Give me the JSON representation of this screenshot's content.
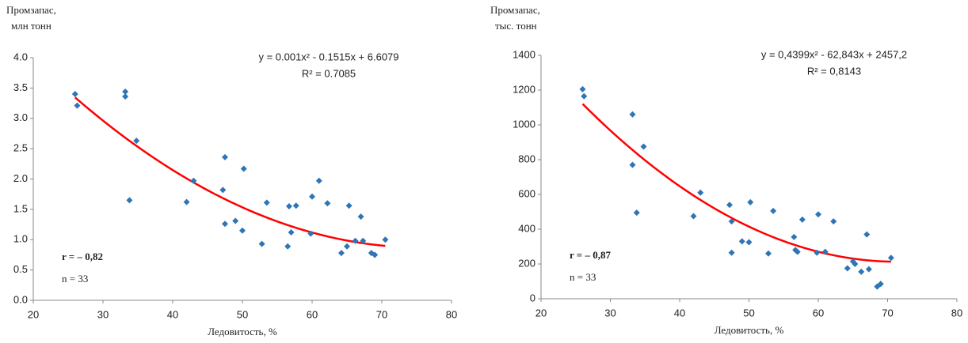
{
  "chart_data": [
    {
      "type": "scatter",
      "y_label_lines": [
        "Промзапас,",
        "млн  тонн"
      ],
      "x_label": "Ледовитость, %",
      "equation": "y = 0.001x² - 0.1515x + 6.6079",
      "r_squared": "R² = 0.7085",
      "r_label": "r = – 0,82",
      "n_label": "n = 33",
      "xlim": [
        20,
        80
      ],
      "xticks": [
        20,
        30,
        40,
        50,
        60,
        70,
        80
      ],
      "ylim": [
        0,
        4
      ],
      "yticks": [
        {
          "value": 0,
          "label": "0.0"
        },
        {
          "value": 0.5,
          "label": "0.5"
        },
        {
          "value": 1,
          "label": "1.0"
        },
        {
          "value": 1.5,
          "label": "1.5"
        },
        {
          "value": 2,
          "label": "2.0"
        },
        {
          "value": 2.5,
          "label": "2.5"
        },
        {
          "value": 3,
          "label": "3.0"
        },
        {
          "value": 3.5,
          "label": "3.5"
        },
        {
          "value": 4,
          "label": "4.0"
        }
      ],
      "trend_color": "#ff0000",
      "series": [
        {
          "color": "#2e75b6",
          "x": [
            26,
            26.3,
            33.2,
            33.2,
            33.8,
            34.8,
            42,
            43,
            47.2,
            47.5,
            47.5,
            49,
            50,
            50.2,
            52.8,
            53.5,
            56.5,
            56.7,
            57,
            57.7,
            59.8,
            60,
            61,
            62.2,
            64.2,
            65,
            65.3,
            66.2,
            67,
            67.3,
            68.5,
            69,
            70.5
          ],
          "values": [
            3.4,
            3.21,
            3.44,
            3.36,
            1.65,
            2.63,
            1.62,
            1.97,
            1.82,
            2.36,
            1.26,
            1.31,
            1.15,
            2.17,
            0.93,
            1.61,
            0.89,
            1.55,
            1.12,
            1.56,
            1.1,
            1.71,
            1.97,
            1.6,
            0.78,
            0.89,
            1.56,
            0.98,
            1.38,
            0.98,
            0.78,
            0.75,
            1.0
          ]
        }
      ]
    },
    {
      "type": "scatter",
      "y_label_lines": [
        "Промзапас,",
        "тыс. тонн"
      ],
      "x_label": "Ледовитость, %",
      "equation": "y = 0,4399x² - 62,843x + 2457,2",
      "r_squared": "R² = 0,8143",
      "r_label": "r = – 0,87",
      "n_label": "n = 33",
      "xlim": [
        20,
        80
      ],
      "xticks": [
        20,
        30,
        40,
        50,
        60,
        70,
        80
      ],
      "ylim": [
        0,
        1400
      ],
      "yticks": [
        0,
        200,
        400,
        600,
        800,
        1000,
        1200,
        1400
      ],
      "trend_color": "#ff0000",
      "series": [
        {
          "color": "#2e75b6",
          "x": [
            26,
            26.2,
            33.2,
            33.2,
            33.8,
            34.8,
            42,
            43,
            47.2,
            47.5,
            47.5,
            49,
            50,
            50.2,
            52.8,
            53.5,
            56.5,
            56.7,
            57,
            57.7,
            59.8,
            60,
            61,
            62.2,
            64.2,
            65,
            65.3,
            66.2,
            67,
            67.3,
            68.5,
            69,
            70.5
          ],
          "values": [
            1205,
            1165,
            1060,
            770,
            495,
            875,
            475,
            610,
            540,
            445,
            265,
            330,
            325,
            555,
            260,
            505,
            355,
            280,
            270,
            455,
            265,
            485,
            270,
            445,
            175,
            215,
            200,
            155,
            370,
            170,
            70,
            85,
            235
          ]
        }
      ]
    }
  ]
}
